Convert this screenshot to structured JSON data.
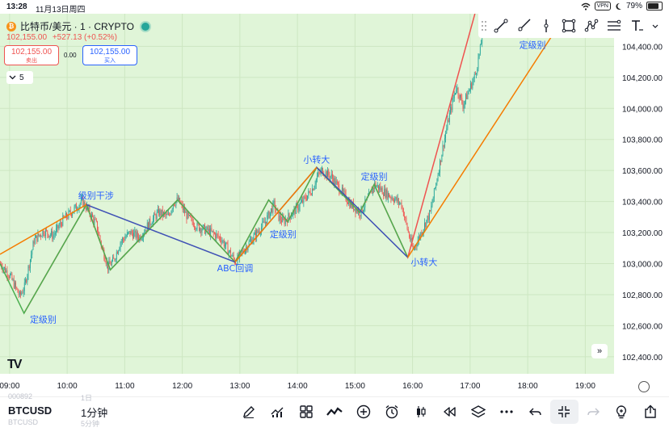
{
  "status_bar": {
    "time": "13:28",
    "date": "11月13日周四",
    "vpn": "VPN",
    "battery": "79%",
    "battery_level": 0.79
  },
  "header": {
    "coin_icon": "bitcoin-icon",
    "symbol_title": "比特币/美元 · 1 · CRYPTO",
    "price": "102,155.00",
    "change": "+527.13 (+0.52%)",
    "sell": {
      "price": "102,155.00",
      "label": "卖出"
    },
    "spread": "0.00",
    "buy": {
      "price": "102,155.00",
      "label": "买入"
    },
    "collapsed_count": "5"
  },
  "drawing_toolbar": [
    "drag-handle-icon",
    "trend-line-icon",
    "ray-line-icon",
    "vertical-line-icon",
    "rectangle-icon",
    "node-path-icon",
    "parallel-channel-icon",
    "text-tool-icon",
    "chevron-down-icon"
  ],
  "chart_data": {
    "type": "candlestick",
    "symbol": "BTCUSD",
    "interval": "1",
    "x_ticks": [
      "09:00",
      "10:00",
      "11:00",
      "12:00",
      "13:00",
      "14:00",
      "15:00",
      "16:00",
      "17:00",
      "18:00",
      "19:00"
    ],
    "x_range": [
      "08:50",
      "19:30"
    ],
    "y_ticks": [
      102400,
      102600,
      102800,
      103000,
      103200,
      103400,
      103600,
      103800,
      104000,
      104200,
      104400
    ],
    "ylim": [
      102290,
      104610
    ],
    "close_path": [
      [
        "08:50",
        103000
      ],
      [
        "09:00",
        102920
      ],
      [
        "09:10",
        102790
      ],
      [
        "09:15",
        102850
      ],
      [
        "09:25",
        103150
      ],
      [
        "09:35",
        103210
      ],
      [
        "09:45",
        103180
      ],
      [
        "09:55",
        103280
      ],
      [
        "10:05",
        103340
      ],
      [
        "10:15",
        103400
      ],
      [
        "10:20",
        103360
      ],
      [
        "10:30",
        103250
      ],
      [
        "10:35",
        103120
      ],
      [
        "10:42",
        102980
      ],
      [
        "10:48",
        103020
      ],
      [
        "10:55",
        103140
      ],
      [
        "11:05",
        103200
      ],
      [
        "11:15",
        103170
      ],
      [
        "11:25",
        103260
      ],
      [
        "11:35",
        103330
      ],
      [
        "11:45",
        103300
      ],
      [
        "11:50",
        103390
      ],
      [
        "11:55",
        103410
      ],
      [
        "12:05",
        103300
      ],
      [
        "12:15",
        103240
      ],
      [
        "12:30",
        103200
      ],
      [
        "12:40",
        103160
      ],
      [
        "12:50",
        103060
      ],
      [
        "12:55",
        103010
      ],
      [
        "13:05",
        103100
      ],
      [
        "13:15",
        103180
      ],
      [
        "13:25",
        103260
      ],
      [
        "13:35",
        103380
      ],
      [
        "13:40",
        103300
      ],
      [
        "13:45",
        103270
      ],
      [
        "13:55",
        103330
      ],
      [
        "14:05",
        103400
      ],
      [
        "14:15",
        103480
      ],
      [
        "14:20",
        103560
      ],
      [
        "14:25",
        103600
      ],
      [
        "14:35",
        103560
      ],
      [
        "14:45",
        103470
      ],
      [
        "14:55",
        103380
      ],
      [
        "15:05",
        103330
      ],
      [
        "15:15",
        103440
      ],
      [
        "15:20",
        103510
      ],
      [
        "15:30",
        103460
      ],
      [
        "15:40",
        103420
      ],
      [
        "15:48",
        103380
      ],
      [
        "15:55",
        103200
      ],
      [
        "16:00",
        103090
      ],
      [
        "16:05",
        103150
      ],
      [
        "16:12",
        103250
      ],
      [
        "16:18",
        103330
      ],
      [
        "16:25",
        103550
      ],
      [
        "16:32",
        103780
      ],
      [
        "16:38",
        103960
      ],
      [
        "16:45",
        104140
      ],
      [
        "16:52",
        104020
      ],
      [
        "16:58",
        104110
      ],
      [
        "17:05",
        104220
      ],
      [
        "17:10",
        104380
      ],
      [
        "17:12",
        104460
      ]
    ],
    "annotation_lines": [
      {
        "color": "#ef5350",
        "points": [
          [
            "09:15",
            102680
          ],
          [
            "10:20",
            103380
          ],
          [
            "10:45",
            102960
          ],
          [
            "11:55",
            103410
          ],
          [
            "12:55",
            103010
          ],
          [
            "13:30",
            103410
          ],
          [
            "13:50",
            103270
          ],
          [
            "14:20",
            103620
          ],
          [
            "15:05",
            103330
          ],
          [
            "15:20",
            103510
          ],
          [
            "15:55",
            103040
          ],
          [
            "17:05",
            104610
          ]
        ]
      },
      {
        "color": "#4caf50",
        "points": [
          [
            "08:50",
            103000
          ],
          [
            "09:15",
            102680
          ],
          [
            "10:20",
            103380
          ],
          [
            "10:45",
            102960
          ],
          [
            "11:55",
            103410
          ],
          [
            "12:55",
            103010
          ],
          [
            "13:30",
            103410
          ],
          [
            "13:50",
            103270
          ],
          [
            "14:20",
            103620
          ],
          [
            "15:05",
            103330
          ],
          [
            "15:20",
            103510
          ],
          [
            "15:55",
            103040
          ]
        ]
      },
      {
        "color": "#3f51b5",
        "points": [
          [
            "10:20",
            103380
          ],
          [
            "12:55",
            103010
          ],
          [
            "14:20",
            103620
          ],
          [
            "15:55",
            103040
          ]
        ]
      },
      {
        "color": "#f57c00",
        "points": [
          [
            "08:50",
            103060
          ],
          [
            "10:20",
            103380
          ]
        ]
      },
      {
        "color": "#f57c00",
        "points": [
          [
            "12:55",
            103010
          ],
          [
            "14:20",
            103620
          ]
        ]
      },
      {
        "color": "#f57c00",
        "points": [
          [
            "15:55",
            103040
          ],
          [
            "18:35",
            104560
          ]
        ]
      }
    ],
    "annotations": [
      {
        "text": "定级别",
        "x": "09:35",
        "y": 102620
      },
      {
        "text": "级别干涉",
        "x": "10:30",
        "y": 103420
      },
      {
        "text": "ABC回调",
        "x": "12:55",
        "y": 102950
      },
      {
        "text": "定级别",
        "x": "13:45",
        "y": 103170
      },
      {
        "text": "小转大",
        "x": "14:20",
        "y": 103650
      },
      {
        "text": "定级别",
        "x": "15:20",
        "y": 103540
      },
      {
        "text": "小转大",
        "x": "16:12",
        "y": 102990
      },
      {
        "text": "定级别",
        "x": "18:05",
        "y": 104390
      }
    ],
    "colors": {
      "up": "#26a69a",
      "down": "#ef5350",
      "background": "#e0f5d8"
    }
  },
  "chart_controls": {
    "logo": "TV",
    "scroll_icon": "double-chevron-right-icon",
    "settings_icon": "axis-settings-icon"
  },
  "bottom_bar": {
    "symbol": "BTCUSD",
    "interval": "1分钟",
    "ghost_top_left": "000892",
    "ghost_top_mid": "1日",
    "ghost_bottom_left": "BTCUSD",
    "ghost_bottom_mid": "5分钟",
    "tools": [
      "pen-icon",
      "indicator-chart-icon",
      "grid-icon",
      "compare-icon",
      "add-circle-icon",
      "alarm-icon",
      "candles-icon",
      "rewind-icon",
      "layers-icon",
      "more-icon",
      "undo-icon",
      "collapse-icon",
      "redo-icon",
      "bulb-icon",
      "share-icon"
    ]
  }
}
